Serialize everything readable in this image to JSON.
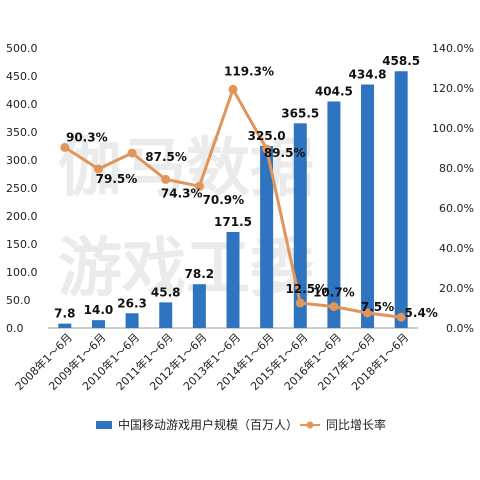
{
  "watermark": {
    "line1": "伽马数据",
    "line2": "游戏工委"
  },
  "colors": {
    "bar": "#2f74c0",
    "line": "#e0955a",
    "axis": "#999999",
    "text": "#222222"
  },
  "chart_data": {
    "type": "bar",
    "categories": [
      "2008年1～6月",
      "2009年1～6月",
      "2010年1～6月",
      "2011年1～6月",
      "2012年1～6月",
      "2013年1～6月",
      "2014年1～6月",
      "2015年1～6月",
      "2016年1～6月",
      "2017年1～6月",
      "2018年1～6月"
    ],
    "series": [
      {
        "name": "中国移动游戏用户规模（百万人）",
        "type": "bar",
        "axis": "left",
        "values": [
          7.8,
          14.0,
          26.3,
          45.8,
          78.2,
          171.5,
          325.0,
          365.5,
          404.5,
          434.8,
          458.5
        ],
        "labels": [
          "7.8",
          "14.0",
          "26.3",
          "45.8",
          "78.2",
          "171.5",
          "325.0",
          "365.5",
          "404.5",
          "434.8",
          "458.5"
        ]
      },
      {
        "name": "同比增长率",
        "type": "line",
        "axis": "right",
        "values": [
          90.3,
          79.5,
          87.5,
          74.3,
          70.9,
          119.3,
          89.5,
          12.5,
          10.7,
          7.5,
          5.4
        ],
        "labels": [
          "90.3%",
          "79.5%",
          "87.5%",
          "74.3%",
          "70.9%",
          "119.3%",
          "89.5%",
          "12.5%",
          "10.7%",
          "7.5%",
          "5.4%"
        ]
      }
    ],
    "ylim_left": [
      0,
      500
    ],
    "yticks_left": [
      "0.0",
      "50.0",
      "100.0",
      "150.0",
      "200.0",
      "250.0",
      "300.0",
      "350.0",
      "400.0",
      "450.0",
      "500.0"
    ],
    "ylim_right": [
      0,
      140
    ],
    "yticks_right": [
      "0.0%",
      "20.0%",
      "40.0%",
      "60.0%",
      "80.0%",
      "100.0%",
      "120.0%",
      "140.0%"
    ],
    "legend_position": "bottom",
    "grid": false
  }
}
